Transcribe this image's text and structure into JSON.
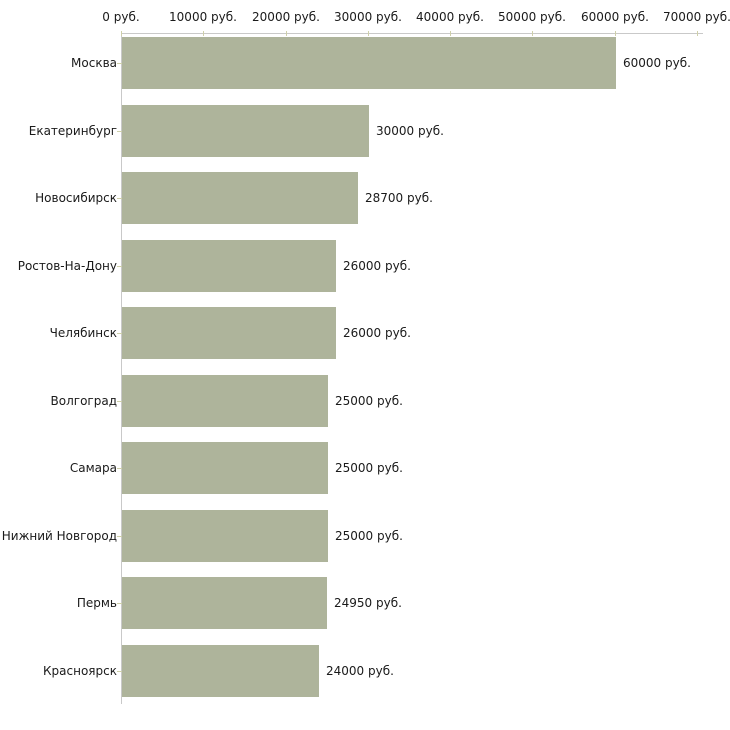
{
  "chart_data": {
    "type": "bar",
    "orientation": "horizontal",
    "title": "",
    "categories": [
      "Москва",
      "Екатеринбург",
      "Новосибирск",
      "Ростов-На-Дону",
      "Челябинск",
      "Волгоград",
      "Самара",
      "Нижний Новгород",
      "Пермь",
      "Красноярск"
    ],
    "values": [
      60000,
      30000,
      28700,
      26000,
      26000,
      25000,
      25000,
      25000,
      24950,
      24000
    ],
    "value_labels": [
      "60000 руб.",
      "30000 руб.",
      "28700 руб.",
      "26000 руб.",
      "26000 руб.",
      "25000 руб.",
      "25000 руб.",
      "25000 руб.",
      "24950 руб.",
      "24000 руб."
    ],
    "x_axis": {
      "position": "top",
      "min": 0,
      "max": 70000,
      "ticks": [
        0,
        10000,
        20000,
        30000,
        40000,
        50000,
        60000,
        70000
      ],
      "tick_labels": [
        "0 руб.",
        "10000 руб.",
        "20000 руб.",
        "30000 руб.",
        "40000 руб.",
        "50000 руб.",
        "60000 руб.",
        "70000 руб."
      ]
    },
    "grid": false,
    "legend": false,
    "colors": {
      "bar": "#aeb49b",
      "axis_line": "#c9c9c9",
      "tick_mark": "#cfd0aa",
      "text": "#1a1a1a",
      "background": "#ffffff"
    }
  }
}
